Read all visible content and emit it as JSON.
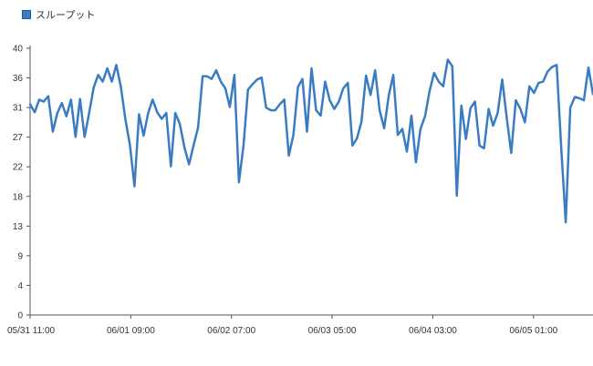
{
  "legend": {
    "label": "スループット",
    "color": "#3a7cc3"
  },
  "chart_data": {
    "type": "line",
    "x_start": "05/31 11:00",
    "x_end": "06/05 14:00",
    "x_ticks": [
      "05/31 11:00",
      "06/01 09:00",
      "06/02 07:00",
      "06/03 05:00",
      "06/04 03:00",
      "06/05 01:00"
    ],
    "y_ticks": [
      "0",
      "4",
      "9",
      "13",
      "18",
      "22",
      "27",
      "31",
      "36",
      "40"
    ],
    "ylim": [
      0,
      40
    ],
    "grid": false,
    "legend_position": "top-left",
    "series": [
      {
        "name": "スループット",
        "color": "#3a7cc3",
        "values": [
          31.6,
          30.4,
          32.3,
          32.0,
          32.8,
          27.5,
          30.3,
          31.8,
          29.8,
          32.3,
          26.7,
          32.4,
          26.7,
          30.3,
          34.1,
          36.0,
          35.0,
          37.0,
          35.0,
          37.5,
          34.2,
          29.3,
          25.4,
          19.3,
          30.1,
          26.9,
          30.3,
          32.3,
          30.4,
          29.4,
          30.3,
          22.3,
          30.3,
          28.6,
          25.1,
          22.6,
          25.4,
          28.1,
          35.8,
          35.8,
          35.4,
          36.7,
          35.0,
          34.0,
          31.2,
          36.0,
          19.9,
          25.4,
          33.8,
          34.6,
          35.3,
          35.6,
          31.1,
          30.7,
          30.7,
          31.6,
          32.3,
          23.9,
          27.0,
          34.2,
          35.4,
          27.5,
          37.0,
          30.7,
          29.9,
          35.0,
          32.2,
          30.9,
          32.0,
          34.0,
          34.8,
          25.4,
          26.5,
          29.0,
          35.9,
          33.0,
          36.7,
          30.7,
          28.0,
          32.9,
          36.0,
          27.0,
          27.9,
          24.5,
          29.9,
          22.9,
          27.9,
          29.8,
          33.6,
          36.3,
          35.0,
          34.3,
          38.3,
          37.3,
          17.9,
          31.4,
          26.4,
          31.0,
          32.0,
          25.4,
          25.0,
          30.9,
          28.4,
          30.3,
          35.3,
          29.5,
          24.3,
          32.2,
          30.9,
          28.9,
          34.3,
          33.3,
          34.8,
          35.0,
          36.5,
          37.2,
          37.5,
          25.0,
          13.9,
          31.1,
          32.7,
          32.5,
          32.2,
          37.1,
          33.1
        ]
      }
    ]
  }
}
